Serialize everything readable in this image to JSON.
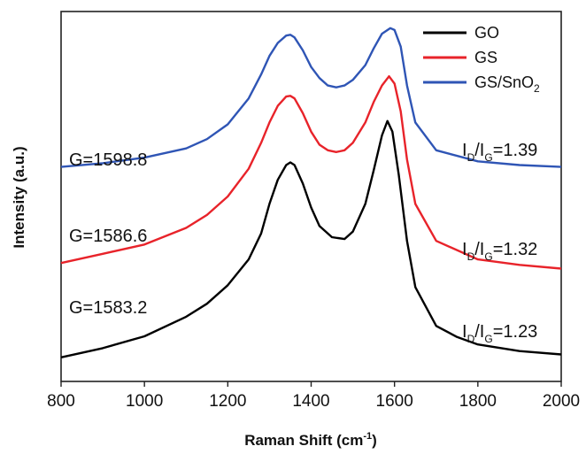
{
  "chart_data": {
    "type": "line",
    "title": "",
    "xlabel": "Raman Shift (cm",
    "xlabel_sup": "-1",
    "xlabel_close": ")",
    "ylabel": "Intensity (a.u.)",
    "xlim": [
      800,
      2000
    ],
    "ylim": [
      0,
      1
    ],
    "x_ticks": [
      800,
      1000,
      1200,
      1400,
      1600,
      1800,
      2000
    ],
    "x_tick_labels": [
      "800",
      "1000",
      "1200",
      "1400",
      "1600",
      "1800",
      "2000"
    ],
    "y_ticks_shown": false,
    "grid": false,
    "legend_position": "top-right",
    "series": [
      {
        "name": "GO",
        "color": "#000000",
        "x": [
          800,
          900,
          1000,
          1100,
          1150,
          1200,
          1250,
          1280,
          1300,
          1320,
          1340,
          1350,
          1360,
          1380,
          1400,
          1420,
          1450,
          1480,
          1500,
          1530,
          1550,
          1570,
          1583,
          1595,
          1610,
          1630,
          1650,
          1700,
          1750,
          1800,
          1900,
          2000
        ],
        "y": [
          0.065,
          0.09,
          0.122,
          0.175,
          0.21,
          0.26,
          0.33,
          0.4,
          0.48,
          0.545,
          0.585,
          0.592,
          0.585,
          0.535,
          0.47,
          0.42,
          0.39,
          0.385,
          0.405,
          0.48,
          0.57,
          0.665,
          0.704,
          0.675,
          0.56,
          0.38,
          0.255,
          0.15,
          0.12,
          0.1,
          0.082,
          0.073
        ]
      },
      {
        "name": "GS",
        "color": "#e8232a",
        "x": [
          800,
          900,
          1000,
          1100,
          1150,
          1200,
          1250,
          1280,
          1300,
          1320,
          1340,
          1350,
          1360,
          1380,
          1400,
          1420,
          1440,
          1460,
          1480,
          1500,
          1530,
          1550,
          1570,
          1587,
          1600,
          1615,
          1630,
          1650,
          1700,
          1800,
          1900,
          2000
        ],
        "y": [
          0.32,
          0.345,
          0.37,
          0.415,
          0.45,
          0.5,
          0.575,
          0.645,
          0.7,
          0.745,
          0.77,
          0.772,
          0.765,
          0.725,
          0.675,
          0.64,
          0.625,
          0.62,
          0.625,
          0.645,
          0.7,
          0.755,
          0.8,
          0.825,
          0.805,
          0.73,
          0.6,
          0.48,
          0.38,
          0.33,
          0.315,
          0.305
        ]
      },
      {
        "name": "GS/SnO2",
        "color": "#2f55b5",
        "x": [
          800,
          900,
          1000,
          1100,
          1150,
          1200,
          1250,
          1280,
          1300,
          1320,
          1340,
          1350,
          1360,
          1380,
          1400,
          1420,
          1440,
          1460,
          1480,
          1500,
          1530,
          1550,
          1570,
          1590,
          1600,
          1615,
          1630,
          1650,
          1700,
          1800,
          1900,
          2000
        ],
        "y": [
          0.58,
          0.59,
          0.605,
          0.63,
          0.655,
          0.695,
          0.765,
          0.83,
          0.88,
          0.915,
          0.935,
          0.937,
          0.93,
          0.895,
          0.85,
          0.82,
          0.8,
          0.795,
          0.8,
          0.815,
          0.855,
          0.9,
          0.94,
          0.955,
          0.95,
          0.905,
          0.8,
          0.7,
          0.625,
          0.595,
          0.585,
          0.58
        ]
      }
    ],
    "legend": [
      {
        "label": "GO",
        "color": "#000000"
      },
      {
        "label": "GS",
        "color": "#e8232a"
      },
      {
        "label": "GS/SnO",
        "sub": "2",
        "color": "#2f55b5"
      }
    ],
    "annotations_left": [
      "G=1598.8",
      "G=1586.6",
      "G=1583.2"
    ],
    "annotations_right": [
      {
        "p1": "I",
        "s1": "D",
        "p2": "/I",
        "s2": "G",
        "p3": "=1.39"
      },
      {
        "p1": "I",
        "s1": "D",
        "p2": "/I",
        "s2": "G",
        "p3": "=1.32"
      },
      {
        "p1": "I",
        "s1": "D",
        "p2": "/I",
        "s2": "G",
        "p3": "=1.23"
      }
    ]
  }
}
